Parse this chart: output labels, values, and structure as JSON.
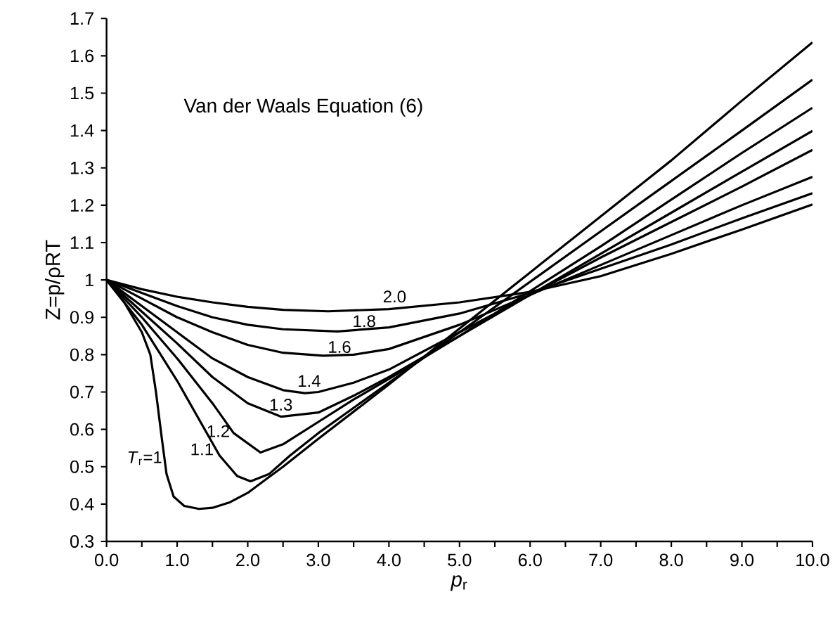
{
  "chart_data": {
    "type": "line",
    "annotations": [
      "Van der Waals Equation (6)"
    ],
    "xlabel": "*p*$_{r}$",
    "ylabel": "Z=p/ρRT",
    "xlim": [
      0,
      10
    ],
    "ylim": [
      0.3,
      1.7
    ],
    "xticks": [
      {
        "value": 0,
        "label": "0.0"
      },
      {
        "value": 1,
        "label": "1.0"
      },
      {
        "value": 2,
        "label": "2.0"
      },
      {
        "value": 3,
        "label": "3.0"
      },
      {
        "value": 4,
        "label": "4.0"
      },
      {
        "value": 5,
        "label": "5.0"
      },
      {
        "value": 6,
        "label": "6.0"
      },
      {
        "value": 7,
        "label": "7.0"
      },
      {
        "value": 8,
        "label": "8.0"
      },
      {
        "value": 9,
        "label": "9.0"
      },
      {
        "value": 10,
        "label": "10.0"
      }
    ],
    "yticks": [
      0.3,
      0.4,
      0.5,
      0.6,
      0.7,
      0.8,
      0.9,
      {
        "value": 1,
        "label": "1"
      },
      1.1,
      1.2,
      1.3,
      1.4,
      1.5,
      1.6,
      1.7
    ],
    "grid": false,
    "legend": false,
    "marker": "none",
    "line_style": "solid",
    "series": [
      {
        "name": "*T*$_{r}$=1",
        "color": "#000000",
        "x": [
          0,
          0.25,
          0.5,
          0.62,
          0.7,
          0.78,
          0.85,
          0.95,
          1.1,
          1.31,
          1.5,
          1.75,
          2.0,
          2.25,
          2.5,
          3,
          4,
          5,
          6,
          7,
          8,
          9,
          10
        ],
        "values": [
          1,
          0.94,
          0.86,
          0.8,
          0.7,
          0.58,
          0.48,
          0.42,
          0.395,
          0.387,
          0.39,
          0.405,
          0.43,
          0.465,
          0.5,
          0.575,
          0.72,
          0.87,
          1.02,
          1.17,
          1.32,
          1.48,
          1.636
        ]
      },
      {
        "name": "1.1",
        "color": "#000000",
        "x": [
          0,
          0.5,
          1,
          1.3,
          1.6,
          1.85,
          2.04,
          2.3,
          2.6,
          3,
          4,
          5,
          6,
          7,
          8,
          9,
          10
        ],
        "values": [
          1,
          0.88,
          0.73,
          0.63,
          0.53,
          0.475,
          0.461,
          0.48,
          0.53,
          0.59,
          0.725,
          0.86,
          0.995,
          1.13,
          1.265,
          1.4,
          1.536
        ]
      },
      {
        "name": "1.2",
        "color": "#000000",
        "x": [
          0,
          0.5,
          1,
          1.5,
          1.8,
          2.18,
          2.5,
          3,
          3.5,
          4,
          5,
          6,
          7,
          8,
          9,
          10
        ],
        "values": [
          1,
          0.9,
          0.79,
          0.67,
          0.59,
          0.538,
          0.56,
          0.62,
          0.68,
          0.735,
          0.85,
          0.97,
          1.09,
          1.215,
          1.34,
          1.461
        ]
      },
      {
        "name": "1.3",
        "color": "#000000",
        "x": [
          0,
          0.5,
          1,
          1.5,
          2,
          2.47,
          3,
          3.5,
          4,
          5,
          6,
          7,
          8,
          9,
          10
        ],
        "values": [
          1,
          0.915,
          0.83,
          0.74,
          0.67,
          0.634,
          0.645,
          0.69,
          0.74,
          0.85,
          0.96,
          1.07,
          1.18,
          1.29,
          1.399
        ]
      },
      {
        "name": "1.4",
        "color": "#000000",
        "x": [
          0,
          0.5,
          1,
          1.5,
          2,
          2.5,
          2.81,
          3,
          3.5,
          4,
          5,
          6,
          7,
          8,
          9,
          10
        ],
        "values": [
          1,
          0.93,
          0.86,
          0.79,
          0.74,
          0.705,
          0.697,
          0.7,
          0.725,
          0.76,
          0.86,
          0.96,
          1.06,
          1.155,
          1.25,
          1.348
        ]
      },
      {
        "name": "1.6",
        "color": "#000000",
        "x": [
          0,
          0.5,
          1,
          1.5,
          2,
          2.5,
          3.07,
          3.5,
          4,
          5,
          6,
          7,
          8,
          9,
          10
        ],
        "values": [
          1,
          0.95,
          0.9,
          0.86,
          0.826,
          0.805,
          0.797,
          0.8,
          0.815,
          0.88,
          0.96,
          1.04,
          1.12,
          1.2,
          1.276
        ]
      },
      {
        "name": "1.8",
        "color": "#000000",
        "x": [
          0,
          0.5,
          1,
          1.5,
          2,
          2.5,
          3.27,
          4,
          5,
          6,
          7,
          8,
          9,
          10
        ],
        "values": [
          1,
          0.965,
          0.93,
          0.9,
          0.88,
          0.868,
          0.862,
          0.873,
          0.91,
          0.965,
          1.03,
          1.095,
          1.165,
          1.232
        ]
      },
      {
        "name": "2.0",
        "color": "#000000",
        "x": [
          0,
          0.5,
          1,
          1.5,
          2,
          2.5,
          3.14,
          4,
          5,
          6,
          7,
          8,
          9,
          10
        ],
        "values": [
          1,
          0.975,
          0.955,
          0.94,
          0.928,
          0.92,
          0.916,
          0.922,
          0.94,
          0.968,
          1.01,
          1.07,
          1.135,
          1.202
        ]
      }
    ]
  }
}
